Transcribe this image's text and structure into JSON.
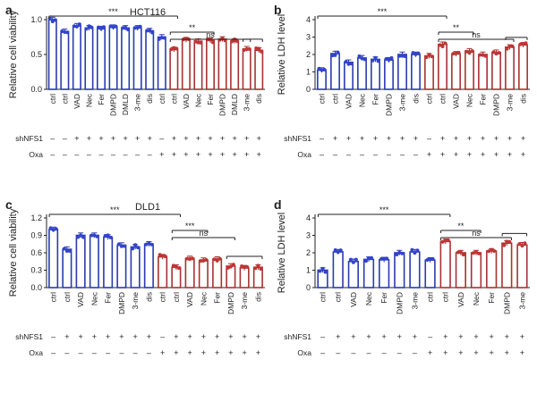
{
  "colors": {
    "blue": "#2b3bb0",
    "red": "#a83232",
    "point_blue": "#3344cc",
    "point_red": "#c03535"
  },
  "chart_data": [
    {
      "type": "bar",
      "panel": "a",
      "title": "HCT116",
      "ylabel": "Relative cell viability",
      "ylim": [
        0,
        1.0
      ],
      "yticks": [
        0.0,
        0.5,
        1.0
      ],
      "categories": [
        "ctrl",
        "ctrl",
        "VAD",
        "Nec",
        "Fer",
        "DMPD",
        "DMLD",
        "3-me",
        "dis",
        "ctrl",
        "ctrl",
        "VAD",
        "Nec",
        "Fer",
        "DMPD",
        "DMLD",
        "3-me",
        "dis"
      ],
      "values": [
        1.0,
        0.83,
        0.91,
        0.88,
        0.87,
        0.89,
        0.88,
        0.88,
        0.84,
        0.75,
        0.57,
        0.71,
        0.69,
        0.7,
        0.72,
        0.69,
        0.58,
        0.56
      ],
      "groups": [
        "blue",
        "blue",
        "blue",
        "blue",
        "blue",
        "blue",
        "blue",
        "blue",
        "blue",
        "blue",
        "red",
        "red",
        "red",
        "red",
        "red",
        "red",
        "red",
        "red"
      ],
      "shNFS1": [
        "-",
        "-",
        "+",
        "+",
        "+",
        "+",
        "+",
        "+",
        "+",
        "-",
        "+",
        "+",
        "+",
        "+",
        "+",
        "+",
        "+",
        "+"
      ],
      "Oxa": [
        "-",
        "-",
        "-",
        "-",
        "-",
        "-",
        "-",
        "-",
        "-",
        "+",
        "+",
        "+",
        "+",
        "+",
        "+",
        "+",
        "+",
        "+"
      ],
      "significance": [
        {
          "label": "***",
          "from": 0,
          "to": 10
        },
        {
          "label": "**",
          "from": 10,
          "to": 13
        },
        {
          "label": "ns",
          "from": 10,
          "to": 16
        },
        {
          "label": "",
          "from": 16,
          "to": 17
        }
      ]
    },
    {
      "type": "bar",
      "panel": "b",
      "title": "",
      "ylabel": "Relative LDH level",
      "ylim": [
        0,
        4
      ],
      "yticks": [
        0,
        1,
        2,
        3,
        4
      ],
      "categories": [
        "ctrl",
        "ctrl",
        "VAD",
        "Nec",
        "Fer",
        "DMPD",
        "3-me",
        "dis",
        "ctrl",
        "ctrl",
        "VAD",
        "Nec",
        "Fer",
        "DMPD",
        "3-me",
        "dis"
      ],
      "values": [
        1.1,
        2.05,
        1.55,
        1.8,
        1.72,
        1.68,
        2.0,
        2.0,
        1.92,
        2.58,
        2.03,
        2.2,
        2.0,
        2.12,
        2.42,
        2.55
      ],
      "groups": [
        "blue",
        "blue",
        "blue",
        "blue",
        "blue",
        "blue",
        "blue",
        "blue",
        "red",
        "red",
        "red",
        "red",
        "red",
        "red",
        "red",
        "red"
      ],
      "shNFS1": [
        "-",
        "+",
        "+",
        "+",
        "+",
        "+",
        "+",
        "+",
        "-",
        "+",
        "+",
        "+",
        "+",
        "+",
        "+",
        "+"
      ],
      "Oxa": [
        "-",
        "-",
        "-",
        "-",
        "-",
        "-",
        "-",
        "-",
        "+",
        "+",
        "+",
        "+",
        "+",
        "+",
        "+",
        "+"
      ],
      "significance": [
        {
          "label": "***",
          "from": 0,
          "to": 9
        },
        {
          "label": "**",
          "from": 9,
          "to": 11
        },
        {
          "label": "ns",
          "from": 9,
          "to": 14
        },
        {
          "label": "",
          "from": 14,
          "to": 15
        }
      ]
    },
    {
      "type": "bar",
      "panel": "c",
      "title": "DLD1",
      "ylabel": "Relative cell viability",
      "ylim": [
        0,
        1.2
      ],
      "yticks": [
        0.0,
        0.3,
        0.6,
        0.9,
        1.2
      ],
      "categories": [
        "ctrl",
        "ctrl",
        "VAD",
        "Nec",
        "Fer",
        "DMPD",
        "3-me",
        "dis",
        "ctrl",
        "ctrl",
        "VAD",
        "Nec",
        "Fer",
        "DMPD",
        "3-me",
        "dis"
      ],
      "values": [
        1.0,
        0.66,
        0.9,
        0.9,
        0.87,
        0.73,
        0.7,
        0.75,
        0.53,
        0.35,
        0.5,
        0.47,
        0.49,
        0.37,
        0.34,
        0.35
      ],
      "groups": [
        "blue",
        "blue",
        "blue",
        "blue",
        "blue",
        "blue",
        "blue",
        "blue",
        "red",
        "red",
        "red",
        "red",
        "red",
        "red",
        "red",
        "red"
      ],
      "shNFS1": [
        "-",
        "+",
        "+",
        "+",
        "+",
        "+",
        "+",
        "+",
        "-",
        "+",
        "+",
        "+",
        "+",
        "+",
        "+",
        "+"
      ],
      "Oxa": [
        "-",
        "-",
        "-",
        "-",
        "-",
        "-",
        "-",
        "-",
        "+",
        "+",
        "+",
        "+",
        "+",
        "+",
        "+",
        "+"
      ],
      "significance": [
        {
          "label": "***",
          "from": 0,
          "to": 9
        },
        {
          "label": "***",
          "from": 9,
          "to": 11
        },
        {
          "label": "ns",
          "from": 9,
          "to": 13
        },
        {
          "label": "",
          "from": 13,
          "to": 15
        }
      ]
    },
    {
      "type": "bar",
      "panel": "d",
      "title": "",
      "ylabel": "Relative LDH level",
      "ylim": [
        0,
        4
      ],
      "yticks": [
        0,
        1,
        2,
        3,
        4
      ],
      "categories": [
        "ctrl",
        "ctrl",
        "VAD",
        "Nec",
        "Fer",
        "DMPD",
        "3-me",
        "ctrl",
        "ctrl",
        "VAD",
        "Nec",
        "Fer",
        "DMPD",
        "3-me"
      ],
      "values": [
        1.0,
        2.05,
        1.5,
        1.62,
        1.6,
        2.0,
        2.05,
        1.58,
        2.65,
        2.0,
        2.0,
        2.1,
        2.55,
        2.45
      ],
      "groups": [
        "blue",
        "blue",
        "blue",
        "blue",
        "blue",
        "blue",
        "blue",
        "blue",
        "red",
        "red",
        "red",
        "red",
        "red",
        "red"
      ],
      "shNFS1": [
        "-",
        "+",
        "+",
        "+",
        "+",
        "+",
        "+",
        "-",
        "+",
        "+",
        "+",
        "+",
        "+",
        "+"
      ],
      "Oxa": [
        "-",
        "-",
        "-",
        "-",
        "-",
        "-",
        "-",
        "+",
        "+",
        "+",
        "+",
        "+",
        "+",
        "+"
      ],
      "significance": [
        {
          "label": "***",
          "from": 0,
          "to": 8
        },
        {
          "label": "**",
          "from": 8,
          "to": 10
        },
        {
          "label": "ns",
          "from": 8,
          "to": 12
        },
        {
          "label": "",
          "from": 12,
          "to": 13
        }
      ]
    }
  ],
  "row_labels": {
    "shNFS1": "shNFS1",
    "Oxa": "Oxa"
  }
}
